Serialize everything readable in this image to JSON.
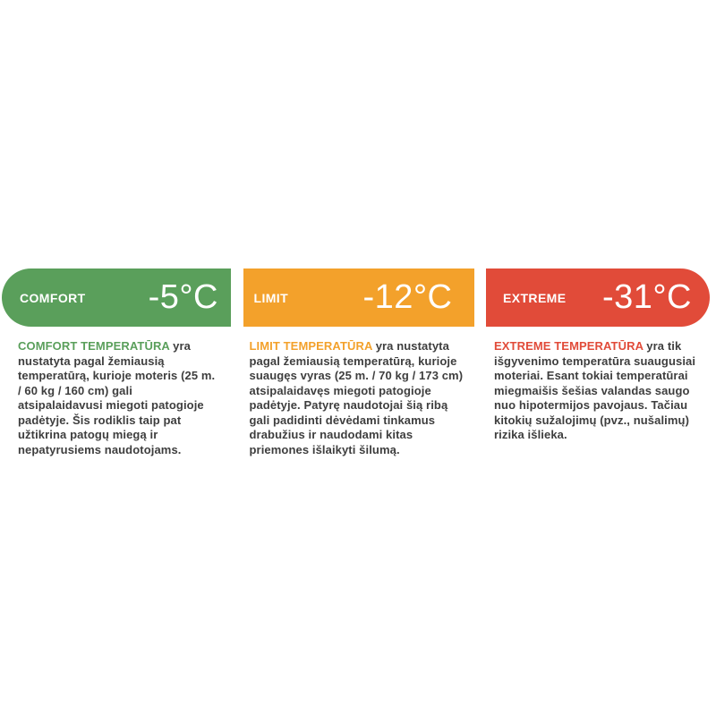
{
  "page": {
    "background": "#ffffff",
    "body_text_color": "#3e3e3e"
  },
  "ratings": [
    {
      "id": "comfort",
      "label": "COMFORT",
      "temperature": "-5°C",
      "color": "#5a9f5b",
      "heading": "COMFORT TEMPERATŪRA",
      "description": "yra nustatyta pagal žemiausią temperatūrą, kurioje moteris (25 m. / 60 kg / 160 cm) gali atsipalaidavusi miegoti patogioje padėtyje. Šis rodiklis taip pat užtikrina patogų miegą ir nepatyrusiems naudotojams."
    },
    {
      "id": "limit",
      "label": "LIMIT",
      "temperature": "-12°C",
      "color": "#f3a12b",
      "heading": "LIMIT TEMPERATŪRA",
      "description": "yra nustatyta pagal žemiausią temperatūrą, kurioje suaugęs vyras (25 m. / 70 kg / 173 cm) atsipalaidavęs miegoti patogioje padėtyje. Patyrę naudotojai šią ribą gali padidinti dėvėdami tinkamus drabužius ir naudodami kitas priemones išlaikyti šilumą."
    },
    {
      "id": "extreme",
      "label": "EXTREME",
      "temperature": "-31°C",
      "color": "#e14b39",
      "heading": "EXTREME TEMPERATŪRA",
      "description": "yra tik išgyvenimo temperatūra suaugusiai moteriai. Esant tokiai temperatūrai miegmaišis šešias valandas saugo nuo hipotermijos pavojaus. Tačiau kitokių sužalojimų (pvz., nušalimų) rizika išlieka."
    }
  ]
}
